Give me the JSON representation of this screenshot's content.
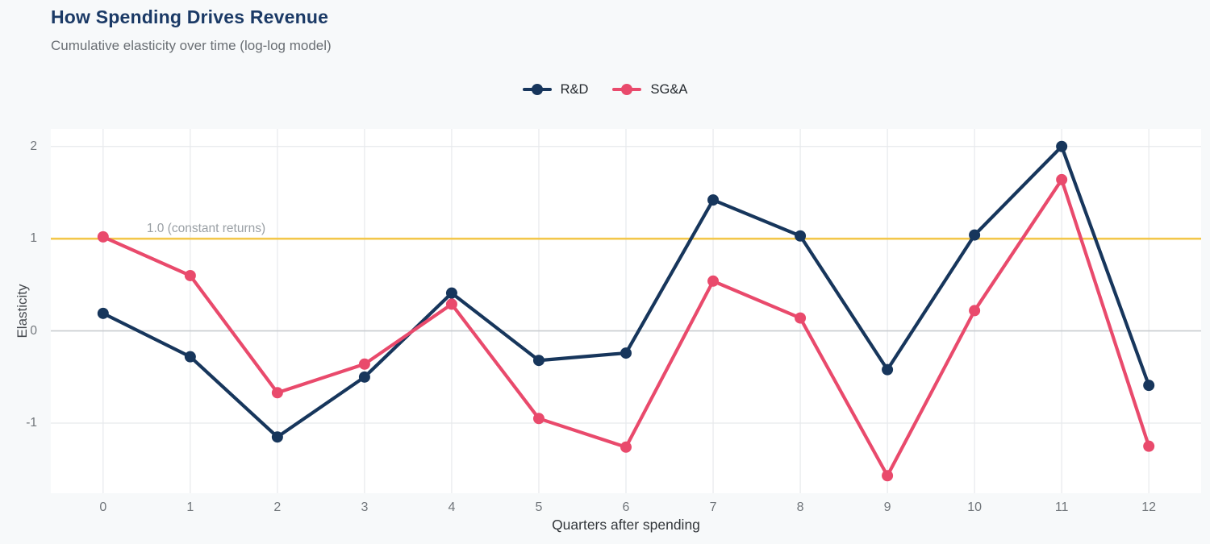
{
  "header": {
    "title": "How Spending Drives Revenue",
    "subtitle": "Cumulative elasticity over time (log-log model)"
  },
  "chart_data": {
    "type": "line",
    "title": "How Spending Drives Revenue",
    "subtitle": "Cumulative elasticity over time (log-log model)",
    "xlabel": "Quarters after spending",
    "ylabel": "Elasticity",
    "x": [
      0,
      1,
      2,
      3,
      4,
      5,
      6,
      7,
      8,
      9,
      10,
      11,
      12
    ],
    "series": [
      {
        "name": "R&D",
        "color": "#17365c",
        "values": [
          0.19,
          -0.28,
          -1.15,
          -0.5,
          0.41,
          -0.32,
          -0.24,
          1.42,
          1.03,
          -0.42,
          1.04,
          2.0,
          -0.59
        ]
      },
      {
        "name": "SG&A",
        "color": "#e94a6c",
        "values": [
          1.02,
          0.6,
          -0.67,
          -0.36,
          0.29,
          -0.95,
          -1.26,
          0.54,
          0.14,
          -1.57,
          0.22,
          1.64,
          -1.25
        ]
      }
    ],
    "x_ticks": [
      0,
      1,
      2,
      3,
      4,
      5,
      6,
      7,
      8,
      9,
      10,
      11,
      12
    ],
    "y_ticks": [
      -1,
      0,
      1,
      2
    ],
    "xlim": [
      -0.6,
      12.6
    ],
    "ylim": [
      -1.76,
      2.19
    ],
    "grid": true,
    "legend_position": "top-center",
    "reference_line": {
      "value": 1.0,
      "label": "1.0 (constant returns)",
      "label_x": 0.5,
      "color": "#f3c74b"
    }
  },
  "colors": {
    "background": "#f7f9fa",
    "plot_background": "#ffffff",
    "gridline": "#e7e9ec",
    "zero_line": "#c9ccd0",
    "title": "#1b3a66",
    "subtitle": "#6a6f74",
    "tick_label": "#71767b",
    "axis_title": "#33373b",
    "annotation": "#9aa0a5",
    "legend_text": "#24292e"
  }
}
